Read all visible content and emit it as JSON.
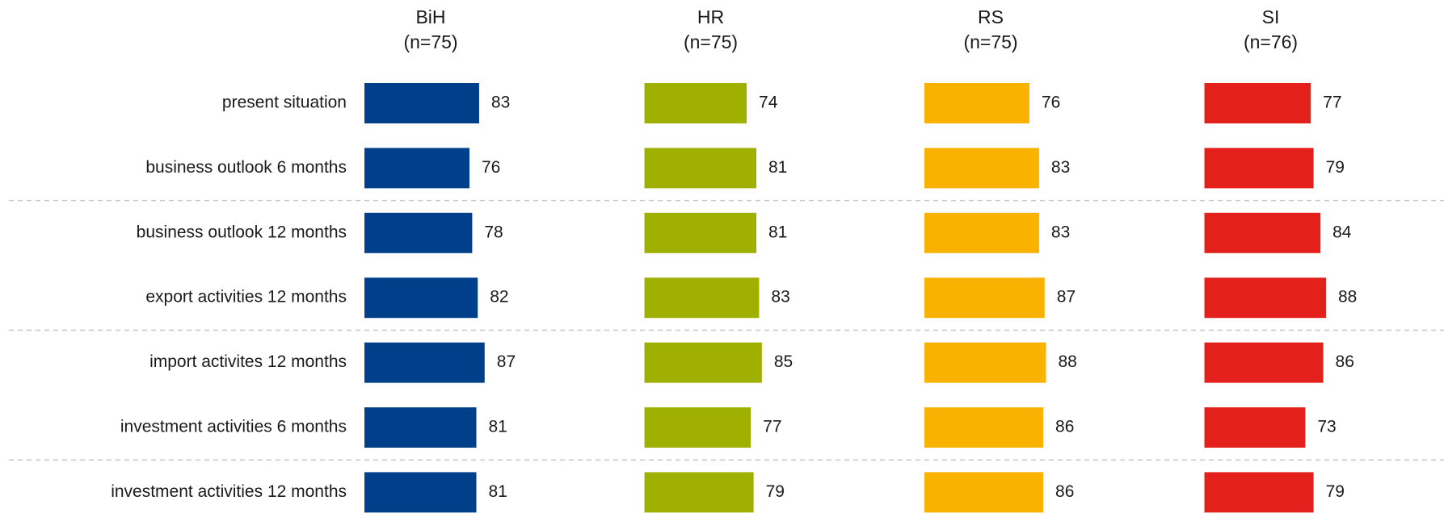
{
  "chart_data": {
    "type": "bar",
    "categories": [
      "present situation",
      "business outlook 6 months",
      "business outlook 12 months",
      "export activities 12 months",
      "import activites 12 months",
      "investment activities 6 months",
      "investment activities 12 months"
    ],
    "series": [
      {
        "name": "BiH",
        "n_label": "(n=75)",
        "color": "#00408a",
        "values": [
          83,
          76,
          78,
          82,
          87,
          81,
          81
        ]
      },
      {
        "name": "HR",
        "n_label": "(n=75)",
        "color": "#a0b000",
        "values": [
          74,
          81,
          81,
          83,
          85,
          77,
          79
        ]
      },
      {
        "name": "RS",
        "n_label": "(n=75)",
        "color": "#f9b200",
        "values": [
          76,
          83,
          83,
          87,
          88,
          86,
          86
        ]
      },
      {
        "name": "SI",
        "n_label": "(n=76)",
        "color": "#e3201b",
        "values": [
          77,
          79,
          84,
          88,
          86,
          73,
          79
        ]
      }
    ]
  }
}
